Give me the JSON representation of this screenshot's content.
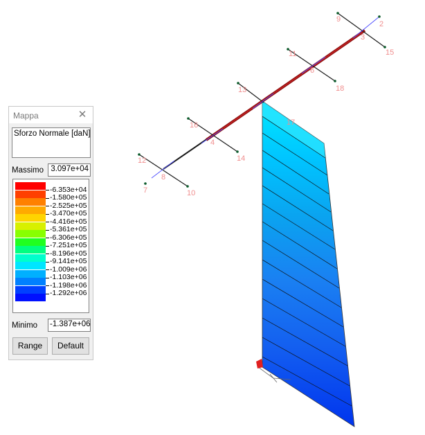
{
  "palette": {
    "title": "Mappa",
    "quantity": "Sforzo Normale [daN]",
    "max_label": "Massimo",
    "max_value": "3.097e+04",
    "min_label": "Minimo",
    "min_value": "-1.387e+06",
    "range_button": "Range",
    "default_button": "Default",
    "scale": [
      {
        "color": "#ff0000",
        "label": "-6.353e+04"
      },
      {
        "color": "#ff4000",
        "label": "-1.580e+05"
      },
      {
        "color": "#ff8000",
        "label": "-2.525e+05"
      },
      {
        "color": "#ffaa00",
        "label": "-3.470e+05"
      },
      {
        "color": "#ffd400",
        "label": "-4.416e+05"
      },
      {
        "color": "#d8f000",
        "label": "-5.361e+05"
      },
      {
        "color": "#88ff00",
        "label": "-6.306e+05"
      },
      {
        "color": "#20ff20",
        "label": "-7.251e+05"
      },
      {
        "color": "#00ff80",
        "label": "-8.196e+05"
      },
      {
        "color": "#00ffcc",
        "label": "-9.141e+05"
      },
      {
        "color": "#00e6ff",
        "label": "-1.009e+06"
      },
      {
        "color": "#00b0ff",
        "label": "-1.103e+06"
      },
      {
        "color": "#0080ff",
        "label": "-1.198e+06"
      },
      {
        "color": "#0040ff",
        "label": "-1.292e+06"
      },
      {
        "color": "#0010ff",
        "label": ""
      }
    ]
  },
  "model": {
    "node_labels": [
      "9",
      "2",
      "3",
      "15",
      "11",
      "6",
      "18",
      "13",
      "16",
      "17",
      "4",
      "14",
      "12",
      "8",
      "7",
      "10"
    ]
  }
}
